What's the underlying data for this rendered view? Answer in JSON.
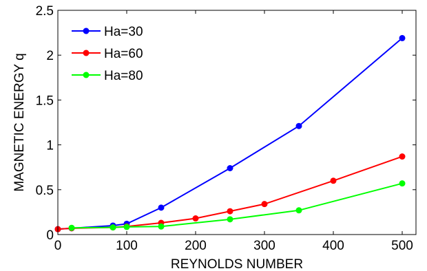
{
  "chart_data": {
    "type": "line",
    "xlabel": "REYNOLDS NUMBER",
    "ylabel": "MAGNETIC ENERGY q",
    "xlim": [
      0,
      520
    ],
    "ylim": [
      0,
      2.5
    ],
    "x_ticks": [
      0,
      100,
      200,
      300,
      400,
      500
    ],
    "x_tick_labels": [
      "0",
      "100",
      "200",
      "300",
      "400",
      "500"
    ],
    "y_ticks": [
      0,
      0.5,
      1,
      1.5,
      2,
      2.5
    ],
    "y_tick_labels": [
      "0",
      "0.5",
      "1",
      "1.5",
      "2",
      "2.5"
    ],
    "grid": false,
    "legend_position": "top-left",
    "series": [
      {
        "name": "Ha=30",
        "color": "#0000ff",
        "points": [
          [
            0,
            0.06
          ],
          [
            20,
            0.07
          ],
          [
            80,
            0.1
          ],
          [
            100,
            0.12
          ],
          [
            150,
            0.3
          ],
          [
            250,
            0.74
          ],
          [
            350,
            1.21
          ],
          [
            500,
            2.19
          ]
        ]
      },
      {
        "name": "Ha=60",
        "color": "#ff0000",
        "points": [
          [
            0,
            0.06
          ],
          [
            20,
            0.07
          ],
          [
            80,
            0.08
          ],
          [
            100,
            0.09
          ],
          [
            150,
            0.13
          ],
          [
            200,
            0.18
          ],
          [
            250,
            0.26
          ],
          [
            300,
            0.34
          ],
          [
            400,
            0.6
          ],
          [
            500,
            0.87
          ]
        ]
      },
      {
        "name": "Ha=80",
        "color": "#00ff00",
        "points": [
          [
            20,
            0.075
          ],
          [
            80,
            0.08
          ],
          [
            100,
            0.085
          ],
          [
            150,
            0.09
          ],
          [
            250,
            0.17
          ],
          [
            350,
            0.27
          ],
          [
            500,
            0.57
          ]
        ]
      }
    ]
  }
}
